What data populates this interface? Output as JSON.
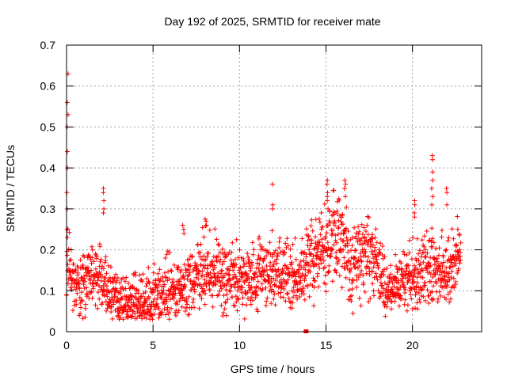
{
  "chart_data": {
    "type": "scatter",
    "title": "Day 192 of 2025, SRMTID for receiver mate",
    "xlabel": "GPS time / hours",
    "ylabel": "SRMTID / TECUs",
    "xlim": [
      0,
      24
    ],
    "ylim": [
      0,
      0.7
    ],
    "xticks": [
      0,
      5,
      10,
      15,
      20
    ],
    "xtick_labels": [
      "0",
      "5",
      "10",
      "15",
      "20"
    ],
    "yticks": [
      0,
      0.1,
      0.2,
      0.3,
      0.4,
      0.5,
      0.6,
      0.7
    ],
    "ytick_labels": [
      "0",
      "0.1",
      "0.2",
      "0.3",
      "0.4",
      "0.5",
      "0.6",
      "0.7"
    ],
    "grid": true,
    "marker": "plus",
    "series_color": "#ff0000",
    "baseline_mean": [
      [
        0.0,
        0.2
      ],
      [
        0.3,
        0.13
      ],
      [
        0.8,
        0.11
      ],
      [
        1.5,
        0.13
      ],
      [
        2.0,
        0.13
      ],
      [
        2.5,
        0.1
      ],
      [
        3.0,
        0.08
      ],
      [
        3.8,
        0.075
      ],
      [
        4.5,
        0.085
      ],
      [
        5.3,
        0.09
      ],
      [
        6.0,
        0.11
      ],
      [
        7.0,
        0.11
      ],
      [
        7.8,
        0.15
      ],
      [
        8.5,
        0.16
      ],
      [
        9.5,
        0.13
      ],
      [
        10.5,
        0.12
      ],
      [
        11.5,
        0.15
      ],
      [
        12.5,
        0.15
      ],
      [
        13.5,
        0.13
      ],
      [
        14.3,
        0.18
      ],
      [
        15.0,
        0.21
      ],
      [
        15.8,
        0.25
      ],
      [
        16.5,
        0.15
      ],
      [
        17.2,
        0.19
      ],
      [
        18.0,
        0.17
      ],
      [
        18.5,
        0.1
      ],
      [
        19.3,
        0.12
      ],
      [
        20.0,
        0.13
      ],
      [
        20.8,
        0.16
      ],
      [
        21.5,
        0.15
      ],
      [
        22.2,
        0.15
      ],
      [
        22.8,
        0.18
      ]
    ],
    "spikes": [
      {
        "x": 0.05,
        "values": [
          0.63,
          0.56,
          0.53,
          0.5,
          0.44,
          0.4,
          0.34,
          0.3,
          0.25
        ]
      },
      {
        "x": 2.15,
        "values": [
          0.35,
          0.34,
          0.32,
          0.3,
          0.29
        ]
      },
      {
        "x": 6.75,
        "values": [
          0.26,
          0.25,
          0.24
        ]
      },
      {
        "x": 8.05,
        "values": [
          0.275,
          0.27,
          0.26
        ]
      },
      {
        "x": 11.95,
        "values": [
          0.36,
          0.31,
          0.3
        ]
      },
      {
        "x": 15.1,
        "values": [
          0.37,
          0.36,
          0.34,
          0.33,
          0.32,
          0.3
        ]
      },
      {
        "x": 16.1,
        "values": [
          0.37,
          0.36,
          0.35,
          0.33
        ]
      },
      {
        "x": 20.1,
        "values": [
          0.32,
          0.31,
          0.29,
          0.28
        ]
      },
      {
        "x": 21.15,
        "values": [
          0.43,
          0.42,
          0.39,
          0.37,
          0.35,
          0.33,
          0.31
        ]
      },
      {
        "x": 21.95,
        "values": [
          0.35,
          0.34,
          0.31
        ]
      }
    ],
    "outliers": [
      [
        13.85,
        0.0
      ]
    ]
  }
}
